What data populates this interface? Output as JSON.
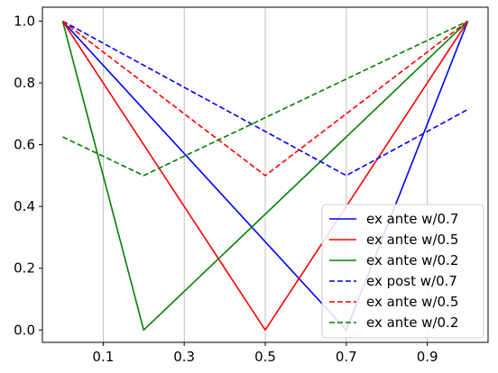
{
  "chart_data": {
    "type": "line",
    "x": [
      0,
      0.2,
      0.5,
      0.7,
      1
    ],
    "xlim": [
      -0.05,
      1.05
    ],
    "ylim": [
      -0.04,
      1.045
    ],
    "xticks": [
      0.1,
      0.3,
      0.5,
      0.7,
      0.9
    ],
    "xtick_labels": [
      "0.1",
      "0.3",
      "0.5",
      "0.7",
      "0.9"
    ],
    "yticks": [
      0.0,
      0.2,
      0.4,
      0.6,
      0.8,
      1.0
    ],
    "ytick_labels": [
      "0.0",
      "0.2",
      "0.4",
      "0.6",
      "0.8",
      "1.0"
    ],
    "grid": {
      "x": true,
      "y": false
    },
    "legend_position": "lower-right",
    "series": [
      {
        "name": "ex ante w/0.7",
        "color": "#0000ff",
        "style": "solid",
        "points": [
          [
            0,
            1.0
          ],
          [
            0.7,
            0.0
          ],
          [
            1.0,
            1.0
          ]
        ]
      },
      {
        "name": "ex ante w/0.5",
        "color": "#ff0000",
        "style": "solid",
        "points": [
          [
            0,
            1.0
          ],
          [
            0.5,
            0.0
          ],
          [
            1.0,
            1.0
          ]
        ]
      },
      {
        "name": "ex ante w/0.2",
        "color": "#008000",
        "style": "solid",
        "points": [
          [
            0,
            1.0
          ],
          [
            0.2,
            0.0
          ],
          [
            1.0,
            1.0
          ]
        ]
      },
      {
        "name": "ex post w/0.7",
        "color": "#0000ff",
        "style": "dashed",
        "points": [
          [
            0,
            1.0
          ],
          [
            0.7,
            0.5
          ],
          [
            1.0,
            0.714
          ]
        ]
      },
      {
        "name": "ex ante w/0.5",
        "color": "#ff0000",
        "style": "dashed",
        "points": [
          [
            0,
            1.0
          ],
          [
            0.5,
            0.5
          ],
          [
            1.0,
            1.0
          ]
        ]
      },
      {
        "name": "ex ante w/0.2",
        "color": "#008000",
        "style": "dashed",
        "points": [
          [
            0,
            0.625
          ],
          [
            0.2,
            0.5
          ],
          [
            1.0,
            1.0
          ]
        ]
      }
    ]
  }
}
